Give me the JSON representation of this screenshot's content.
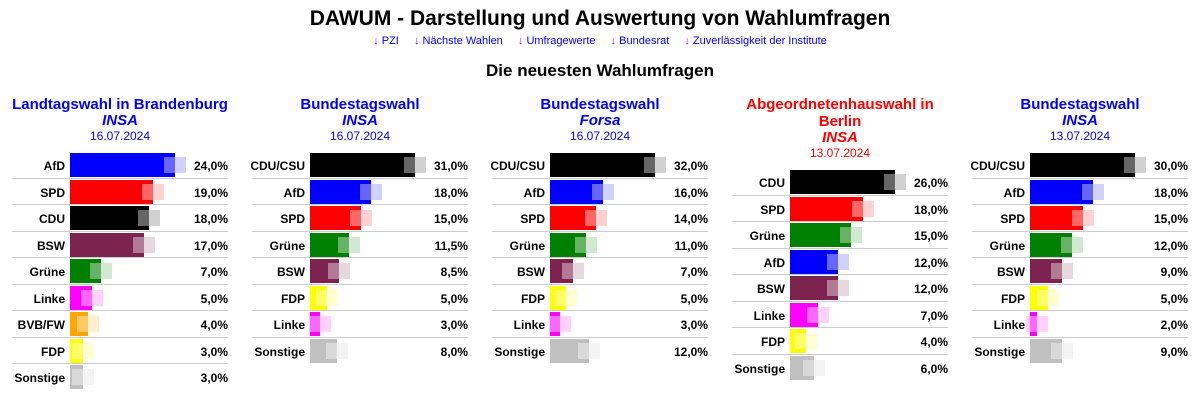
{
  "title": "DAWUM - Darstellung und Auswertung von Wahlumfragen",
  "nav": [
    {
      "arrow": "↓",
      "label": "PZI"
    },
    {
      "arrow": "↓",
      "label": "Nächste Wahlen"
    },
    {
      "arrow": "↓",
      "label": "Umfragewerte"
    },
    {
      "arrow": "↓",
      "label": "Bundesrat"
    },
    {
      "arrow": "↓",
      "label": "Zuverlässigkeit der Institute"
    }
  ],
  "subtitle": "Die neuesten Wahlumfragen",
  "colors": {
    "AfD": "#0000ff",
    "SPD": "#ff0000",
    "CDU": "#000000",
    "CDU/CSU": "#000000",
    "BSW": "#7d2350",
    "Grüne": "#008000",
    "Linke": "#ff00ff",
    "BVB/FW": "#ffa500",
    "FDP": "#ffff00",
    "Sonstige": "#c0c0c0"
  },
  "polls": [
    {
      "title": "Landtagswahl in Brandenburg",
      "institute": "INSA",
      "date": "16.07.2024",
      "color": "#0000ff",
      "max": 24,
      "rows": [
        {
          "party": "AfD",
          "value": 24,
          "label": "24,0%"
        },
        {
          "party": "SPD",
          "value": 19,
          "label": "19,0%"
        },
        {
          "party": "CDU",
          "value": 18,
          "label": "18,0%"
        },
        {
          "party": "BSW",
          "value": 17,
          "label": "17,0%"
        },
        {
          "party": "Grüne",
          "value": 7,
          "label": "7,0%"
        },
        {
          "party": "Linke",
          "value": 5,
          "label": "5,0%"
        },
        {
          "party": "BVB/FW",
          "value": 4,
          "label": "4,0%"
        },
        {
          "party": "FDP",
          "value": 3,
          "label": "3,0%"
        },
        {
          "party": "Sonstige",
          "value": 3,
          "label": "3,0%"
        }
      ]
    },
    {
      "title": "Bundestagswahl",
      "institute": "INSA",
      "date": "16.07.2024",
      "color": "#0000ff",
      "max": 31,
      "rows": [
        {
          "party": "CDU/CSU",
          "value": 31,
          "label": "31,0%"
        },
        {
          "party": "AfD",
          "value": 18,
          "label": "18,0%"
        },
        {
          "party": "SPD",
          "value": 15,
          "label": "15,0%"
        },
        {
          "party": "Grüne",
          "value": 11.5,
          "label": "11,5%"
        },
        {
          "party": "BSW",
          "value": 8.5,
          "label": "8,5%"
        },
        {
          "party": "FDP",
          "value": 5,
          "label": "5,0%"
        },
        {
          "party": "Linke",
          "value": 3,
          "label": "3,0%"
        },
        {
          "party": "Sonstige",
          "value": 8,
          "label": "8,0%"
        }
      ]
    },
    {
      "title": "Bundestagswahl",
      "institute": "Forsa",
      "date": "16.07.2024",
      "color": "#0000ff",
      "max": 32,
      "rows": [
        {
          "party": "CDU/CSU",
          "value": 32,
          "label": "32,0%"
        },
        {
          "party": "AfD",
          "value": 16,
          "label": "16,0%"
        },
        {
          "party": "SPD",
          "value": 14,
          "label": "14,0%"
        },
        {
          "party": "Grüne",
          "value": 11,
          "label": "11,0%"
        },
        {
          "party": "BSW",
          "value": 7,
          "label": "7,0%"
        },
        {
          "party": "FDP",
          "value": 5,
          "label": "5,0%"
        },
        {
          "party": "Linke",
          "value": 3,
          "label": "3,0%"
        },
        {
          "party": "Sonstige",
          "value": 12,
          "label": "12,0%"
        }
      ]
    },
    {
      "title": "Abgeordnetenhauswahl in Berlin",
      "institute": "INSA",
      "date": "13.07.2024",
      "color": "#ff0000",
      "max": 26,
      "rows": [
        {
          "party": "CDU",
          "value": 26,
          "label": "26,0%"
        },
        {
          "party": "SPD",
          "value": 18,
          "label": "18,0%"
        },
        {
          "party": "Grüne",
          "value": 15,
          "label": "15,0%"
        },
        {
          "party": "AfD",
          "value": 12,
          "label": "12,0%"
        },
        {
          "party": "BSW",
          "value": 12,
          "label": "12,0%"
        },
        {
          "party": "Linke",
          "value": 7,
          "label": "7,0%"
        },
        {
          "party": "FDP",
          "value": 4,
          "label": "4,0%"
        },
        {
          "party": "Sonstige",
          "value": 6,
          "label": "6,0%"
        }
      ]
    },
    {
      "title": "Bundestagswahl",
      "institute": "INSA",
      "date": "13.07.2024",
      "color": "#0000ff",
      "max": 30,
      "rows": [
        {
          "party": "CDU/CSU",
          "value": 30,
          "label": "30,0%"
        },
        {
          "party": "AfD",
          "value": 18,
          "label": "18,0%"
        },
        {
          "party": "SPD",
          "value": 15,
          "label": "15,0%"
        },
        {
          "party": "Grüne",
          "value": 12,
          "label": "12,0%"
        },
        {
          "party": "BSW",
          "value": 9,
          "label": "9,0%"
        },
        {
          "party": "FDP",
          "value": 5,
          "label": "5,0%"
        },
        {
          "party": "Linke",
          "value": 2,
          "label": "2,0%"
        },
        {
          "party": "Sonstige",
          "value": 9,
          "label": "9,0%"
        }
      ]
    }
  ]
}
